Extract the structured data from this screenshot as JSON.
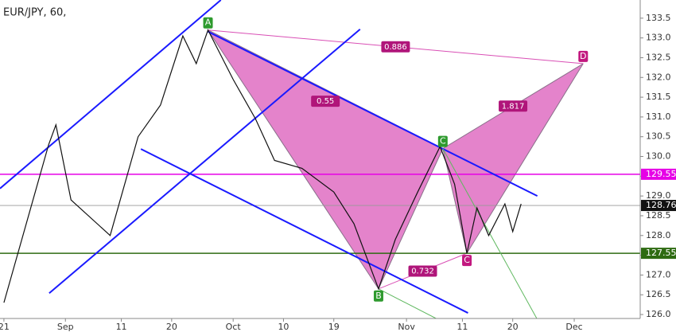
{
  "chart_data": {
    "type": "line",
    "title": "EUR/JPY, 60,",
    "x": [
      0,
      8,
      9.3,
      12,
      19,
      24,
      28,
      32,
      34.4,
      36.5,
      41,
      45,
      48.4,
      53.3,
      59,
      62.6,
      67,
      70,
      74,
      78,
      80.6,
      82.8,
      84.6,
      86.7,
      89.6,
      91,
      92.5
    ],
    "series": [
      {
        "color": "#111111",
        "values": [
          126.3,
          130.3,
          130.8,
          128.9,
          128.0,
          130.5,
          131.3,
          133.05,
          132.35,
          133.2,
          131.95,
          130.95,
          129.9,
          129.7,
          129.1,
          128.3,
          126.65,
          127.9,
          129.1,
          130.25,
          129.3,
          127.55,
          128.7,
          128.0,
          128.8,
          128.1,
          128.8
        ]
      }
    ],
    "xlim": [
      -0.7,
      113.8
    ],
    "ylim": [
      125.9,
      133.96
    ],
    "xticks": [
      {
        "value": 0,
        "label": "21"
      },
      {
        "value": 11,
        "label": "Sep"
      },
      {
        "value": 21,
        "label": "11"
      },
      {
        "value": 30,
        "label": "20"
      },
      {
        "value": 41,
        "label": "Oct"
      },
      {
        "value": 50,
        "label": "10"
      },
      {
        "value": 59,
        "label": "19"
      },
      {
        "value": 72,
        "label": "Nov"
      },
      {
        "value": 82,
        "label": "11"
      },
      {
        "value": 91,
        "label": "20"
      },
      {
        "value": 102,
        "label": "Dec"
      }
    ],
    "yticks": [
      {
        "value": 126,
        "label": "126.0"
      },
      126.5,
      {
        "value": 127,
        "label": "127.0"
      },
      127.5,
      {
        "value": 128,
        "label": "128.0"
      },
      128.5,
      {
        "value": 129,
        "label": "129.0"
      },
      129.5,
      {
        "value": 130,
        "label": "130.0"
      },
      130.5,
      {
        "value": 131,
        "label": "131.0"
      },
      131.5,
      {
        "value": 132,
        "label": "132.0"
      },
      132.5,
      {
        "value": 133,
        "label": "133.0"
      },
      133.5
    ],
    "levels": [
      {
        "value": 129.55,
        "color": "#e600e6"
      },
      {
        "value": 128.76,
        "color": "#111111"
      },
      {
        "value": 127.55,
        "color": "#2e6b12"
      }
    ],
    "trendlines": [
      {
        "color": "#1a1aff",
        "x": [
          -0.7,
          38.8
        ],
        "y": [
          129.19,
          133.96
        ]
      },
      {
        "color": "#1a1aff",
        "x": [
          8.1,
          63.7
        ],
        "y": [
          126.54,
          133.22
        ]
      },
      {
        "color": "#1a1aff",
        "x": [
          24.5,
          83
        ],
        "y": [
          130.19,
          126.04
        ]
      },
      {
        "color": "#1a1aff",
        "x": [
          36.5,
          95.4
        ],
        "y": [
          133.16,
          129.0
        ]
      },
      {
        "color": "#5fb85f",
        "x": [
          67,
          77.3
        ],
        "y": [
          126.65,
          125.9
        ]
      },
      {
        "color": "#5fb85f",
        "x": [
          78.5,
          95.3
        ],
        "y": [
          130.2,
          125.9
        ]
      }
    ],
    "pattern": {
      "color": "#d94fb5",
      "labels": [
        "A",
        "B",
        "C",
        "C",
        "D"
      ],
      "x": [
        36.5,
        67,
        78.5,
        82.8,
        103.6
      ],
      "y": [
        133.2,
        126.65,
        130.2,
        127.55,
        132.35
      ]
    },
    "ratios": [
      "0.886",
      "0.55",
      "1.817",
      "0.732"
    ]
  }
}
